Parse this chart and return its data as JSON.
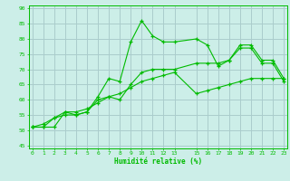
{
  "title": "",
  "xlabel": "Humidité relative (%)",
  "ylabel": "",
  "bg_color": "#cceee8",
  "grid_color": "#aacccc",
  "line_color": "#00bb00",
  "x_ticks": [
    0,
    1,
    2,
    3,
    4,
    5,
    6,
    7,
    8,
    9,
    10,
    11,
    12,
    13,
    15,
    16,
    17,
    18,
    19,
    20,
    21,
    22,
    23
  ],
  "y_ticks": [
    45,
    50,
    55,
    60,
    65,
    70,
    75,
    80,
    85,
    90
  ],
  "xlim": [
    -0.3,
    23.3
  ],
  "ylim": [
    44,
    91
  ],
  "series1": [
    51,
    51,
    51,
    56,
    55,
    56,
    61,
    67,
    66,
    79,
    86,
    81,
    79,
    79,
    80,
    78,
    71,
    73,
    78,
    78,
    73,
    73,
    67
  ],
  "series2": [
    51,
    51,
    54,
    55,
    55,
    56,
    60,
    61,
    60,
    65,
    69,
    70,
    70,
    70,
    72,
    72,
    72,
    73,
    77,
    77,
    72,
    72,
    66
  ],
  "series3": [
    51,
    52,
    54,
    56,
    56,
    57,
    59,
    61,
    62,
    64,
    66,
    67,
    68,
    69,
    62,
    63,
    64,
    65,
    66,
    67,
    67,
    67,
    67
  ],
  "x_series": [
    0,
    1,
    2,
    3,
    4,
    5,
    6,
    7,
    8,
    9,
    10,
    11,
    12,
    13,
    15,
    16,
    17,
    18,
    19,
    20,
    21,
    22,
    23
  ]
}
